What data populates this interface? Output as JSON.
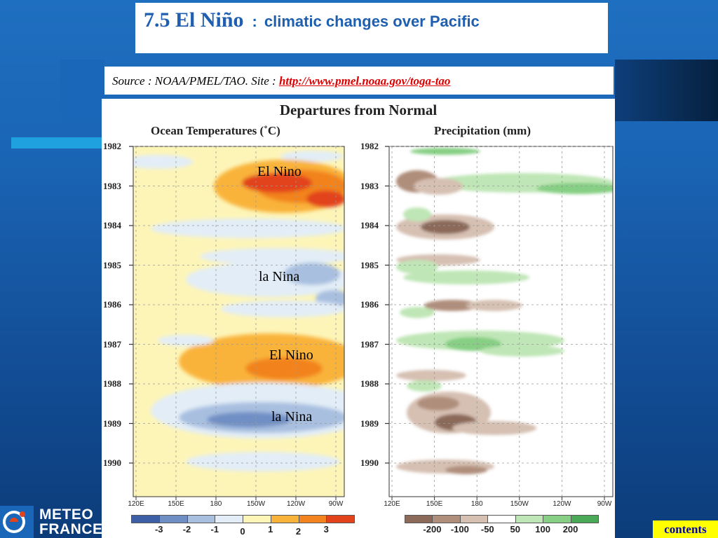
{
  "slide": {
    "title_main": "7.5 El Niño",
    "title_sep": ":",
    "title_sub": "climatic changes over Pacific",
    "source_prefix": "Source : NOAA/PMEL/TAO. Site :",
    "source_link": "http://www.pmel.noaa.gov/toga-tao",
    "contents_label": "contents",
    "logo_line1": "METEO",
    "logo_line2": "FRANCE"
  },
  "colors": {
    "background": "#1a64b4",
    "title": "#1f5fb0",
    "link": "#e00000",
    "contents_bg": "#ffff00",
    "contents_text": "#0000aa"
  },
  "chart_data": [
    {
      "type": "heatmap",
      "title": "Departures from Normal",
      "subtitle": "Ocean Temperatures (˚C)",
      "x_ticks": [
        "120E",
        "150E",
        "180",
        "150W",
        "120W",
        "90W"
      ],
      "y_ticks": [
        "1982",
        "1983",
        "1984",
        "1985",
        "1986",
        "1987",
        "1988",
        "1989",
        "1990"
      ],
      "legend_values": [
        "-3",
        "-2",
        "-1",
        "0",
        "1",
        "2",
        "3"
      ],
      "legend_colors": [
        "#3d5fa6",
        "#6f8fc4",
        "#a8bfe0",
        "#e2edf7",
        "#fdf5b8",
        "#f9b33a",
        "#f2831e",
        "#e2431a"
      ],
      "annotations": [
        {
          "text": "El Nino",
          "year": 1982.8
        },
        {
          "text": "la Nina",
          "year": 1985.4
        },
        {
          "text": "El Nino",
          "year": 1987.3
        },
        {
          "text": "la Nina",
          "year": 1989.0
        }
      ]
    },
    {
      "type": "heatmap",
      "subtitle": "Precipitation (mm)",
      "x_ticks": [
        "120E",
        "150E",
        "180",
        "150W",
        "120W",
        "90W"
      ],
      "y_ticks": [
        "1982",
        "1983",
        "1984",
        "1985",
        "1986",
        "1987",
        "1988",
        "1989",
        "1990"
      ],
      "legend_values": [
        "-200",
        "-100",
        "-50",
        "50",
        "100",
        "200"
      ],
      "legend_colors": [
        "#8b6a5a",
        "#b08e7c",
        "#d6c0b2",
        "#ffffff",
        "#bfe6b6",
        "#86cf84",
        "#4aa957"
      ]
    }
  ]
}
